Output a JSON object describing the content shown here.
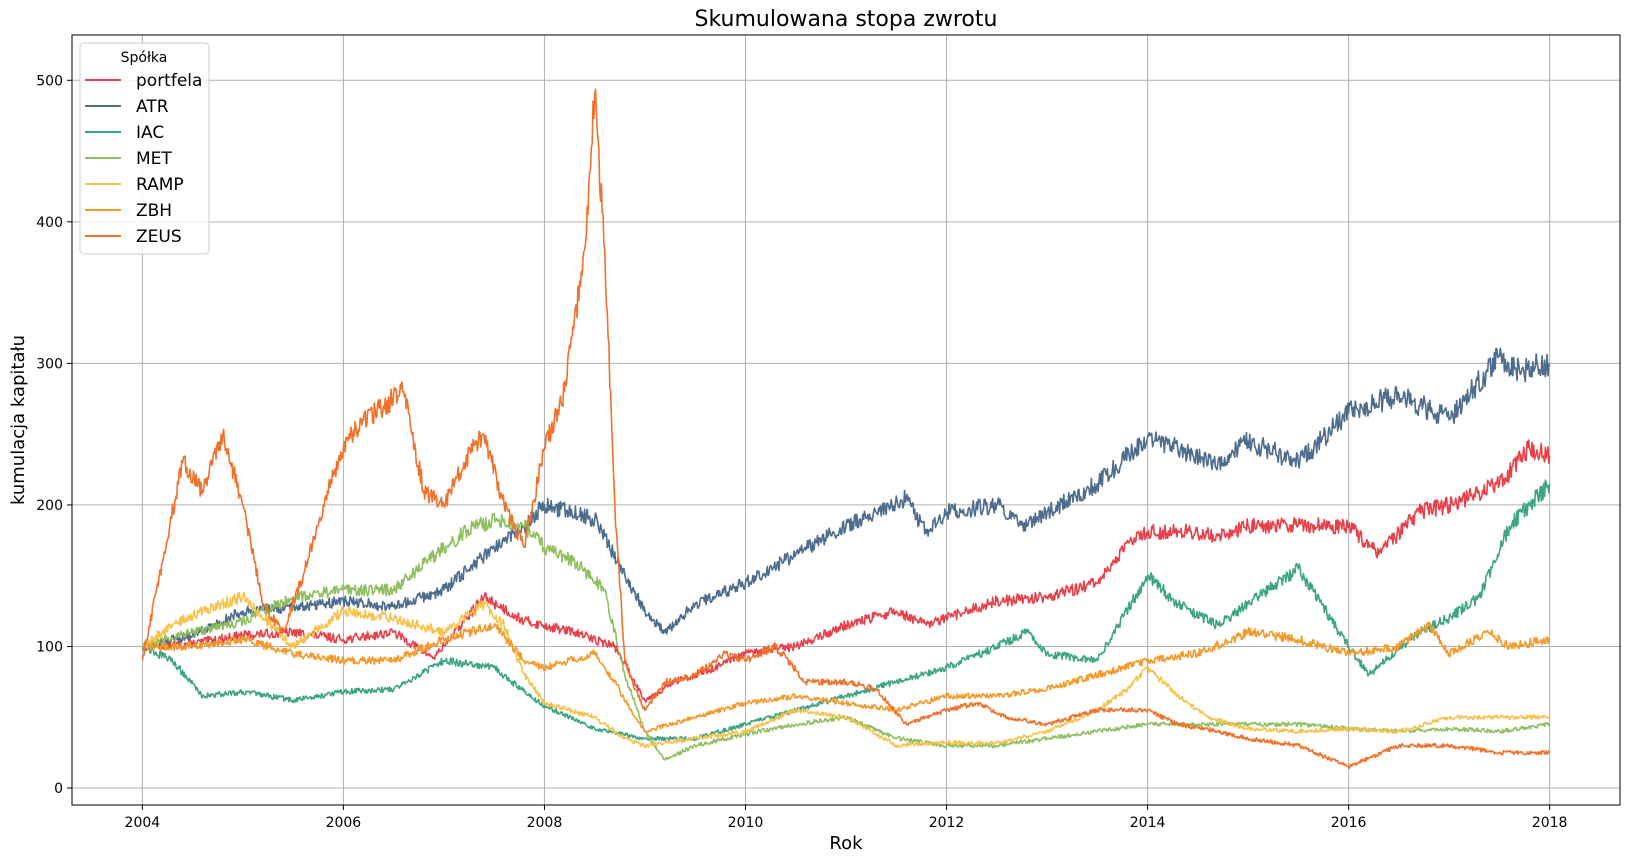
{
  "chart_data": {
    "type": "line",
    "title": "Skumulowana stopa zwrotu",
    "xlabel": "Rok",
    "ylabel": "kumulacja kapitału",
    "xlim": [
      2003.3,
      2018.7
    ],
    "ylim": [
      -12,
      532
    ],
    "x_ticks": [
      2004,
      2006,
      2008,
      2010,
      2012,
      2014,
      2016,
      2018
    ],
    "x_tick_labels": [
      "2004",
      "2006",
      "2008",
      "2010",
      "2012",
      "2014",
      "2016",
      "2018"
    ],
    "y_ticks": [
      0,
      100,
      200,
      300,
      400,
      500
    ],
    "y_tick_labels": [
      "0",
      "100",
      "200",
      "300",
      "400",
      "500"
    ],
    "grid": true,
    "legend": {
      "title": "Spółka",
      "placement": "top-left"
    },
    "series": [
      {
        "name": "portfela",
        "color": "#e8414a",
        "x": [
          2004.0,
          2004.5,
          2005.0,
          2005.5,
          2006.0,
          2006.5,
          2006.9,
          2007.4,
          2007.8,
          2008.3,
          2008.7,
          2009.0,
          2009.3,
          2009.7,
          2010.0,
          2010.5,
          2011.0,
          2011.5,
          2011.8,
          2012.0,
          2012.5,
          2013.0,
          2013.5,
          2013.9,
          2014.3,
          2014.7,
          2015.0,
          2015.5,
          2016.0,
          2016.3,
          2016.7,
          2017.0,
          2017.5,
          2017.8,
          2018.0
        ],
        "y": [
          100,
          102,
          108,
          110,
          105,
          110,
          92,
          135,
          118,
          110,
          100,
          62,
          75,
          85,
          95,
          100,
          115,
          125,
          115,
          120,
          132,
          135,
          145,
          180,
          182,
          178,
          185,
          186,
          185,
          165,
          195,
          200,
          215,
          240,
          235
        ]
      },
      {
        "name": "ATR",
        "color": "#4e6d8e",
        "x": [
          2004.0,
          2004.5,
          2005.0,
          2005.5,
          2006.0,
          2006.5,
          2007.0,
          2007.5,
          2007.8,
          2008.0,
          2008.5,
          2008.8,
          2009.0,
          2009.2,
          2009.5,
          2010.0,
          2010.5,
          2011.0,
          2011.6,
          2011.8,
          2012.0,
          2012.5,
          2012.8,
          2013.0,
          2013.5,
          2014.0,
          2014.3,
          2014.7,
          2015.0,
          2015.5,
          2016.0,
          2016.5,
          2017.0,
          2017.5,
          2017.7,
          2018.0
        ],
        "y": [
          100,
          108,
          125,
          128,
          132,
          128,
          140,
          170,
          185,
          200,
          190,
          150,
          125,
          110,
          130,
          145,
          165,
          185,
          205,
          180,
          195,
          200,
          185,
          195,
          215,
          248,
          240,
          230,
          245,
          230,
          265,
          278,
          260,
          305,
          295,
          300
        ]
      },
      {
        "name": "IAC",
        "color": "#3ea584",
        "x": [
          2004.0,
          2004.3,
          2004.6,
          2005.0,
          2005.5,
          2006.0,
          2006.5,
          2007.0,
          2007.5,
          2007.8,
          2008.0,
          2008.5,
          2009.0,
          2009.5,
          2010.0,
          2010.5,
          2011.0,
          2011.5,
          2012.0,
          2012.5,
          2012.8,
          2013.0,
          2013.5,
          2014.0,
          2014.3,
          2014.7,
          2015.0,
          2015.5,
          2016.0,
          2016.2,
          2016.7,
          2017.0,
          2017.3,
          2017.6,
          2017.8,
          2018.0
        ],
        "y": [
          100,
          90,
          65,
          68,
          62,
          68,
          70,
          90,
          85,
          68,
          58,
          42,
          35,
          35,
          45,
          55,
          65,
          75,
          85,
          100,
          110,
          95,
          90,
          150,
          130,
          115,
          130,
          155,
          100,
          80,
          110,
          120,
          135,
          185,
          200,
          215
        ]
      },
      {
        "name": "MET",
        "color": "#8fbf5f",
        "x": [
          2004.0,
          2004.5,
          2005.0,
          2005.5,
          2006.0,
          2006.5,
          2007.0,
          2007.3,
          2007.6,
          2007.8,
          2008.0,
          2008.3,
          2008.6,
          2008.8,
          2009.0,
          2009.2,
          2009.5,
          2010.0,
          2010.5,
          2011.0,
          2011.5,
          2012.0,
          2012.5,
          2013.0,
          2013.5,
          2014.0,
          2014.5,
          2015.0,
          2015.5,
          2016.0,
          2016.5,
          2017.0,
          2017.5,
          2018.0
        ],
        "y": [
          100,
          110,
          118,
          135,
          140,
          140,
          170,
          185,
          190,
          185,
          170,
          160,
          140,
          80,
          40,
          20,
          30,
          38,
          45,
          50,
          35,
          30,
          30,
          35,
          40,
          45,
          45,
          45,
          45,
          42,
          40,
          42,
          40,
          45
        ]
      },
      {
        "name": "RAMP",
        "color": "#f7c24a",
        "x": [
          2004.0,
          2004.3,
          2004.6,
          2005.0,
          2005.5,
          2006.0,
          2006.5,
          2007.0,
          2007.4,
          2007.6,
          2007.8,
          2008.0,
          2008.5,
          2008.8,
          2009.0,
          2009.5,
          2010.0,
          2010.5,
          2011.0,
          2011.5,
          2012.0,
          2012.5,
          2013.0,
          2013.5,
          2013.8,
          2014.0,
          2014.3,
          2014.6,
          2015.0,
          2015.5,
          2016.0,
          2016.5,
          2017.0,
          2017.5,
          2018.0
        ],
        "y": [
          100,
          115,
          125,
          135,
          100,
          125,
          120,
          110,
          130,
          115,
          80,
          60,
          50,
          35,
          30,
          35,
          40,
          55,
          50,
          30,
          32,
          32,
          40,
          55,
          70,
          85,
          65,
          50,
          42,
          40,
          42,
          40,
          50,
          50,
          50
        ]
      },
      {
        "name": "ZBH",
        "color": "#f39a2a",
        "x": [
          2004.0,
          2004.5,
          2005.0,
          2005.5,
          2006.0,
          2006.5,
          2007.0,
          2007.5,
          2007.8,
          2008.0,
          2008.5,
          2008.7,
          2008.9,
          2009.0,
          2009.5,
          2010.0,
          2010.5,
          2011.0,
          2011.5,
          2012.0,
          2012.5,
          2013.0,
          2013.5,
          2014.0,
          2014.5,
          2015.0,
          2015.5,
          2016.0,
          2016.5,
          2016.8,
          2017.0,
          2017.4,
          2017.6,
          2018.0
        ],
        "y": [
          100,
          100,
          105,
          95,
          90,
          90,
          105,
          115,
          90,
          85,
          95,
          75,
          50,
          40,
          50,
          60,
          65,
          60,
          55,
          65,
          65,
          70,
          80,
          90,
          95,
          110,
          105,
          95,
          100,
          115,
          95,
          110,
          100,
          105
        ]
      },
      {
        "name": "ZEUS",
        "color": "#f2712a",
        "x": [
          2004.0,
          2004.2,
          2004.4,
          2004.6,
          2004.8,
          2005.0,
          2005.2,
          2005.4,
          2005.6,
          2005.8,
          2006.0,
          2006.2,
          2006.4,
          2006.6,
          2006.8,
          2007.0,
          2007.2,
          2007.4,
          2007.6,
          2007.8,
          2008.0,
          2008.2,
          2008.4,
          2008.5,
          2008.6,
          2008.7,
          2008.8,
          2008.9,
          2009.0,
          2009.2,
          2009.5,
          2009.8,
          2010.0,
          2010.3,
          2010.6,
          2011.0,
          2011.3,
          2011.6,
          2012.0,
          2012.3,
          2012.6,
          2013.0,
          2013.5,
          2014.0,
          2014.3,
          2014.7,
          2015.0,
          2015.5,
          2016.0,
          2016.5,
          2017.0,
          2017.5,
          2018.0
        ],
        "y": [
          90,
          160,
          230,
          210,
          250,
          200,
          130,
          110,
          150,
          200,
          240,
          260,
          270,
          280,
          210,
          200,
          230,
          250,
          200,
          170,
          240,
          280,
          380,
          490,
          380,
          200,
          90,
          70,
          55,
          75,
          80,
          95,
          90,
          100,
          75,
          75,
          70,
          45,
          55,
          60,
          50,
          45,
          55,
          55,
          45,
          40,
          35,
          30,
          15,
          30,
          30,
          25,
          25
        ]
      }
    ]
  }
}
